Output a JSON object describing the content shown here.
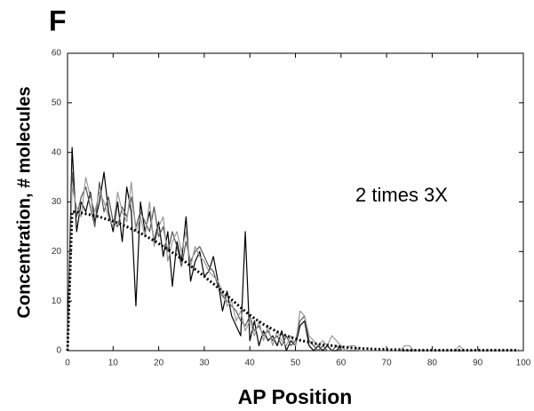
{
  "chart_data": {
    "type": "line",
    "panel_label": "F",
    "annotation": "2 times 3X",
    "x_label": "AP Position",
    "y_label": "Concentration, # molecules",
    "xlim": [
      0,
      100
    ],
    "xticks": [
      0,
      10,
      20,
      30,
      40,
      50,
      60,
      70,
      80,
      90,
      100
    ],
    "ylim": [
      0,
      60
    ],
    "yticks": [
      0,
      10,
      20,
      30,
      40,
      50,
      60
    ],
    "x": [
      0,
      1,
      2,
      3,
      4,
      5,
      6,
      7,
      8,
      9,
      10,
      11,
      12,
      13,
      14,
      15,
      16,
      17,
      18,
      19,
      20,
      21,
      22,
      23,
      24,
      25,
      26,
      27,
      28,
      29,
      30,
      31,
      32,
      33,
      34,
      35,
      36,
      37,
      38,
      39,
      40,
      41,
      42,
      43,
      44,
      45,
      46,
      47,
      48,
      49,
      50,
      51,
      52,
      53,
      54,
      55,
      56,
      57,
      58,
      59,
      60,
      61,
      62,
      63,
      64,
      65,
      66,
      67,
      68,
      69,
      70,
      71,
      72,
      73,
      74,
      75,
      76,
      77,
      78,
      79,
      80,
      81,
      82,
      83,
      84,
      85,
      86,
      87,
      88,
      89,
      90,
      91,
      92,
      93,
      94,
      95,
      96,
      97,
      98,
      99
    ],
    "series": [
      {
        "color": "#000000",
        "style": "solid",
        "values": [
          0,
          41,
          24,
          30,
          28,
          32,
          26,
          30,
          36,
          28,
          24,
          30,
          22,
          33,
          28,
          9,
          30,
          24,
          28,
          22,
          26,
          19,
          24,
          13,
          22,
          18,
          27,
          14,
          18,
          20,
          15,
          16,
          19,
          14,
          8,
          12,
          7,
          5,
          3,
          24,
          2,
          6,
          1,
          4,
          2,
          3,
          1,
          4,
          0,
          2,
          1,
          5,
          6,
          1,
          0,
          1,
          0,
          1,
          0,
          0,
          1,
          0,
          0,
          0,
          0,
          0,
          0,
          0,
          0,
          0,
          0,
          0,
          0,
          0,
          0,
          0,
          0,
          0,
          0,
          0,
          0,
          0,
          0,
          0,
          0,
          0,
          0,
          0,
          0,
          0,
          0,
          0,
          0,
          0,
          0,
          0,
          0,
          0,
          0,
          0
        ]
      },
      {
        "color": "#555555",
        "style": "solid",
        "values": [
          0,
          36,
          27,
          31,
          33,
          29,
          25,
          34,
          28,
          31,
          26,
          25,
          29,
          27,
          31,
          25,
          28,
          26,
          24,
          29,
          23,
          25,
          20,
          24,
          21,
          17,
          22,
          18,
          20,
          21,
          19,
          17,
          16,
          13,
          11,
          10,
          9,
          8,
          6,
          5,
          7,
          4,
          5,
          3,
          4,
          2,
          3,
          1,
          3,
          1,
          2,
          6,
          7,
          2,
          1,
          0,
          1,
          0,
          0,
          1,
          0,
          0,
          0,
          0,
          0,
          0,
          0,
          0,
          0,
          0,
          0,
          0,
          0,
          0,
          0,
          0,
          0,
          0,
          0,
          0,
          0,
          0,
          0,
          0,
          0,
          0,
          0,
          0,
          0,
          0,
          0,
          0,
          0,
          0,
          0,
          0,
          0,
          0,
          0,
          0
        ]
      },
      {
        "color": "#999999",
        "style": "solid",
        "values": [
          0,
          33,
          29,
          27,
          35,
          31,
          28,
          32,
          30,
          27,
          25,
          32,
          28,
          26,
          34,
          24,
          27,
          23,
          30,
          21,
          25,
          27,
          18,
          22,
          24,
          20,
          24,
          17,
          21,
          19,
          18,
          16,
          15,
          14,
          12,
          9,
          10,
          6,
          8,
          4,
          6,
          3,
          6,
          2,
          5,
          1,
          4,
          2,
          1,
          3,
          1,
          8,
          7,
          3,
          2,
          1,
          2,
          1,
          3,
          2,
          1,
          0,
          1,
          1,
          0,
          0,
          0,
          0,
          0,
          0,
          0,
          0,
          0,
          0,
          1,
          1,
          0,
          0,
          0,
          0,
          0,
          0,
          0,
          0,
          0,
          0,
          1,
          0,
          0,
          0,
          0,
          0,
          0,
          0,
          0,
          0,
          0,
          0,
          0,
          0
        ]
      },
      {
        "color": "#000000",
        "style": "dotted",
        "values": [
          0,
          28,
          28,
          27.8,
          27.6,
          27.4,
          27.2,
          27,
          26.7,
          26.4,
          26.1,
          25.8,
          25.4,
          25,
          24.6,
          24.2,
          23.7,
          23.2,
          22.7,
          22.2,
          21.6,
          21,
          20.4,
          19.8,
          19.2,
          18.5,
          17.8,
          17.1,
          16.4,
          15.7,
          15,
          14.2,
          13.5,
          12.7,
          11.9,
          11.1,
          10.3,
          9.5,
          8.7,
          7.9,
          7.2,
          6.5,
          5.9,
          5.3,
          4.8,
          4.3,
          3.8,
          3.4,
          3,
          2.7,
          2.4,
          2.1,
          1.9,
          1.7,
          1.5,
          1.3,
          1.2,
          1.1,
          1,
          0.9,
          0.8,
          0.7,
          0.6,
          0.5,
          0.5,
          0.4,
          0.4,
          0.3,
          0.3,
          0.3,
          0.2,
          0.2,
          0.2,
          0.2,
          0.1,
          0.1,
          0.1,
          0.1,
          0.1,
          0.1,
          0.1,
          0.1,
          0.1,
          0.1,
          0.1,
          0.1,
          0.1,
          0.1,
          0.1,
          0.1,
          0.1,
          0.1,
          0.1,
          0.1,
          0.1,
          0.1,
          0.1,
          0.1,
          0.1,
          0.1
        ]
      }
    ]
  }
}
